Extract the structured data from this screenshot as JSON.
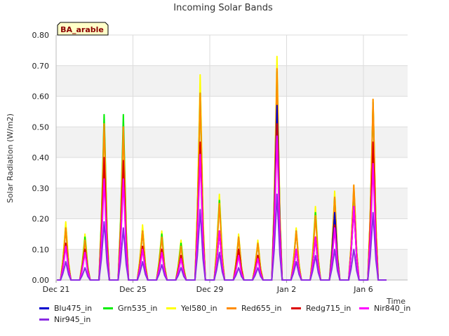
{
  "chart_data": {
    "type": "line",
    "title": "Incoming Solar Bands",
    "xlabel": "Time",
    "ylabel": "Solar Radiation (W/m2)",
    "badge": "BA_arable",
    "xlim": [
      0,
      18.3
    ],
    "ylim": [
      0,
      0.8
    ],
    "yticks": [
      {
        "value": 0.0,
        "label": "0.00"
      },
      {
        "value": 0.1,
        "label": "0.10"
      },
      {
        "value": 0.2,
        "label": "0.20"
      },
      {
        "value": 0.3,
        "label": "0.30"
      },
      {
        "value": 0.4,
        "label": "0.40"
      },
      {
        "value": 0.5,
        "label": "0.50"
      },
      {
        "value": 0.6,
        "label": "0.60"
      },
      {
        "value": 0.7,
        "label": "0.70"
      },
      {
        "value": 0.8,
        "label": "0.80"
      }
    ],
    "xticks": [
      {
        "value": 0,
        "label": "Dec 21"
      },
      {
        "value": 4,
        "label": "Dec 25"
      },
      {
        "value": 8,
        "label": "Dec 29"
      },
      {
        "value": 12,
        "label": "Jan 2"
      },
      {
        "value": 16,
        "label": "Jan 6"
      }
    ],
    "day_peaks_x": [
      0.5,
      1.5,
      2.5,
      3.5,
      4.5,
      5.5,
      6.5,
      7.5,
      8.5,
      9.5,
      10.5,
      11.5,
      12.5,
      13.5,
      14.5,
      15.5,
      16.5
    ],
    "series": [
      {
        "name": "Yel580_in",
        "color": "#ffff00",
        "peaks": [
          0.19,
          0.15,
          0.52,
          0.5,
          0.18,
          0.16,
          0.13,
          0.67,
          0.28,
          0.15,
          0.13,
          0.73,
          0.17,
          0.24,
          0.29,
          0.31,
          0.59
        ]
      },
      {
        "name": "Grn535_in",
        "color": "#00ee00",
        "peaks": [
          0.17,
          0.14,
          0.54,
          0.54,
          0.16,
          0.15,
          0.12,
          0.61,
          0.26,
          0.14,
          0.12,
          0.68,
          0.16,
          0.22,
          0.27,
          0.3,
          0.58
        ]
      },
      {
        "name": "Red655_in",
        "color": "#ff8c00",
        "peaks": [
          0.17,
          0.13,
          0.51,
          0.5,
          0.16,
          0.14,
          0.11,
          0.61,
          0.25,
          0.14,
          0.12,
          0.69,
          0.16,
          0.21,
          0.27,
          0.31,
          0.59
        ]
      },
      {
        "name": "Blu475_in",
        "color": "#0000cd",
        "peaks": [
          0.12,
          0.1,
          0.36,
          0.35,
          0.11,
          0.1,
          0.08,
          0.44,
          0.16,
          0.1,
          0.08,
          0.57,
          0.1,
          0.14,
          0.22,
          0.24,
          0.42
        ]
      },
      {
        "name": "Redg715_in",
        "color": "#dd0000",
        "peaks": [
          0.12,
          0.1,
          0.4,
          0.39,
          0.11,
          0.1,
          0.08,
          0.45,
          0.16,
          0.1,
          0.08,
          0.51,
          0.1,
          0.14,
          0.18,
          0.24,
          0.45
        ]
      },
      {
        "name": "Nir840_in",
        "color": "#ff00ff",
        "peaks": [
          0.11,
          0.09,
          0.33,
          0.33,
          0.1,
          0.09,
          0.07,
          0.41,
          0.16,
          0.08,
          0.07,
          0.47,
          0.1,
          0.14,
          0.17,
          0.24,
          0.38
        ]
      },
      {
        "name": "Nir945_in",
        "color": "#8a2be2",
        "peaks": [
          0.06,
          0.04,
          0.19,
          0.17,
          0.06,
          0.05,
          0.04,
          0.23,
          0.09,
          0.04,
          0.04,
          0.28,
          0.06,
          0.08,
          0.1,
          0.1,
          0.22
        ]
      }
    ]
  },
  "legend_items": [
    {
      "label": "Blu475_in",
      "color": "#0000cd"
    },
    {
      "label": "Grn535_in",
      "color": "#00ee00"
    },
    {
      "label": "Yel580_in",
      "color": "#ffff00"
    },
    {
      "label": "Red655_in",
      "color": "#ff8c00"
    },
    {
      "label": "Redg715_in",
      "color": "#dd0000"
    },
    {
      "label": "Nir840_in",
      "color": "#ff00ff"
    },
    {
      "label": "Nir945_in",
      "color": "#8a2be2"
    }
  ]
}
